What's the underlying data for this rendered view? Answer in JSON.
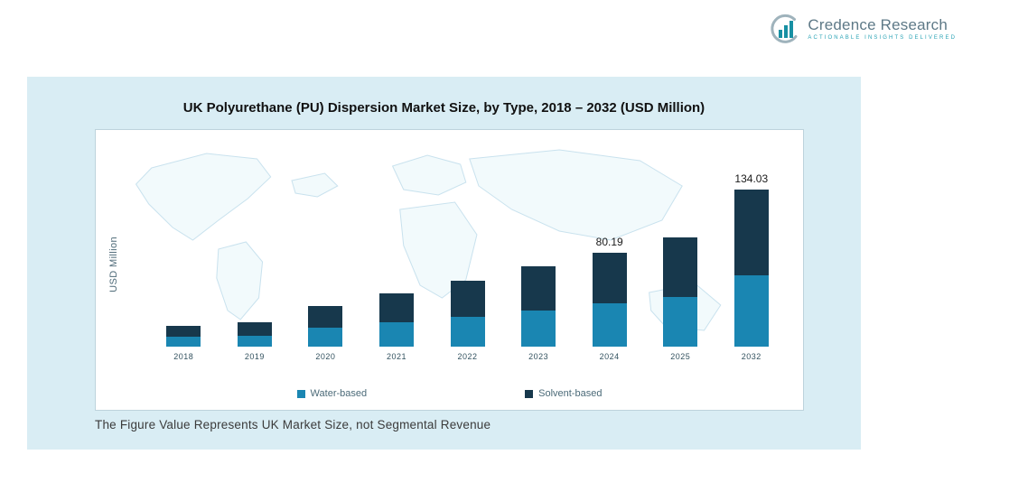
{
  "logo": {
    "brand": "Credence Research",
    "tagline": "Actionable Insights Delivered",
    "icon": "bar-chart-icon",
    "accent_color": "#1790a3"
  },
  "panel": {
    "background_color": "#d9edf4"
  },
  "chart_data": {
    "type": "bar",
    "subtype": "stacked_column",
    "title": "UK Polyurethane (PU) Dispersion Market Size, by Type, 2018 – 2032 (USD Million)",
    "xlabel": "",
    "ylabel": "USD Million",
    "ylim": [
      0,
      150
    ],
    "grid": false,
    "legend_position": "bottom",
    "background": "world-map-watermark",
    "categories": [
      "2018",
      "2019",
      "2020",
      "2021",
      "2022",
      "2023",
      "2024",
      "2025",
      "2032"
    ],
    "series": [
      {
        "name": "Water-based",
        "color": "#1a86b2",
        "values": [
          8.2,
          9.6,
          16.0,
          20.5,
          25.5,
          31.0,
          37.0,
          42.5,
          61.0
        ]
      },
      {
        "name": "Solvent-based",
        "color": "#17384c",
        "values": [
          9.3,
          10.9,
          19.0,
          24.5,
          30.5,
          37.5,
          43.19,
          50.5,
          73.03
        ]
      }
    ],
    "totals": [
      17.5,
      20.5,
      35.0,
      45.0,
      56.0,
      68.5,
      80.19,
      93.0,
      134.03
    ],
    "data_labels": [
      {
        "category": "2024",
        "value": "80.19"
      },
      {
        "category": "2032",
        "value": "134.03"
      }
    ]
  },
  "footnote": "The Figure Value Represents UK Market Size, not Segmental Revenue"
}
